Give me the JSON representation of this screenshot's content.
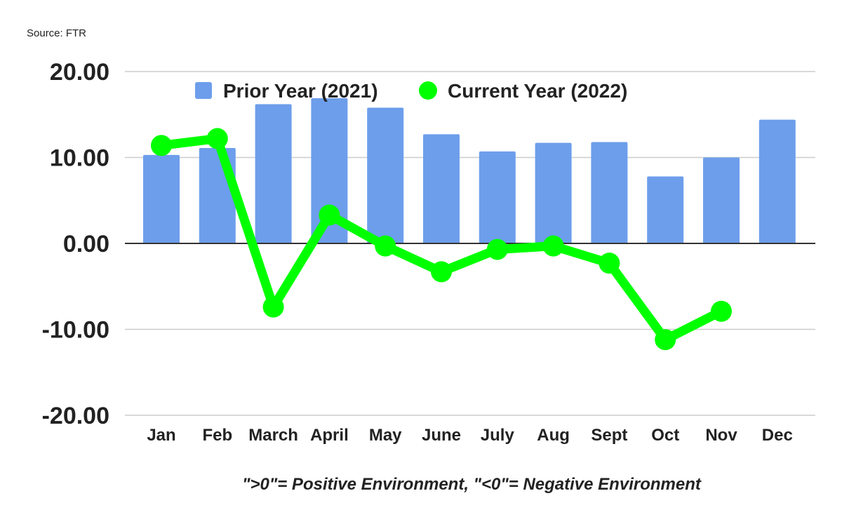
{
  "chart_data": {
    "type": "bar+line",
    "source": "Source: FTR",
    "categories": [
      "Jan",
      "Feb",
      "March",
      "April",
      "May",
      "June",
      "July",
      "Aug",
      "Sept",
      "Oct",
      "Nov",
      "Dec"
    ],
    "series": [
      {
        "name": "Prior Year (2021)",
        "type": "bar",
        "color": "#6d9eeb",
        "values": [
          10.3,
          11.1,
          16.2,
          16.9,
          15.8,
          12.7,
          10.7,
          11.7,
          11.8,
          7.8,
          10.0,
          14.4
        ]
      },
      {
        "name": "Current Year (2022)",
        "type": "line",
        "color": "#00ff00",
        "values": [
          11.4,
          12.2,
          -7.4,
          3.3,
          -0.3,
          -3.3,
          -0.7,
          -0.3,
          -2.3,
          -11.2,
          -7.9,
          null
        ]
      }
    ],
    "yticks": [
      "20.00",
      "10.00",
      "0.00",
      "-10.00",
      "-20.00"
    ],
    "ylim": [
      -20,
      20
    ],
    "grid": true,
    "legend": "top",
    "footnote": "\">0\"= Positive Environment, \"<0\"= Negative Environment"
  }
}
